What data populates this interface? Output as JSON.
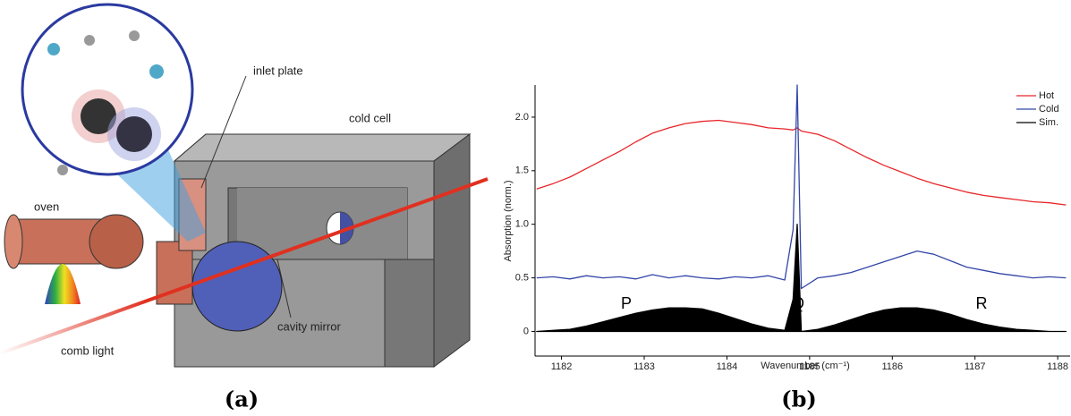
{
  "panel_a": {
    "labels": [
      "inlet plate",
      "cold cell",
      "oven",
      "cavity mirror",
      "comb light"
    ],
    "caption": "(a)"
  },
  "chart_data": {
    "type": "line",
    "caption": "(b)",
    "x_label": "Wavenumber (cm⁻¹)",
    "y_label": "Absorption (norm.)",
    "x": [
      1181.7,
      1181.9,
      1182.1,
      1182.3,
      1182.5,
      1182.7,
      1182.9,
      1183.1,
      1183.3,
      1183.5,
      1183.7,
      1183.9,
      1184.1,
      1184.3,
      1184.5,
      1184.7,
      1184.8,
      1184.85,
      1184.9,
      1185.1,
      1185.3,
      1185.5,
      1185.7,
      1185.9,
      1186.1,
      1186.3,
      1186.5,
      1186.7,
      1186.9,
      1187.1,
      1187.3,
      1187.5,
      1187.7,
      1187.9,
      1188.1
    ],
    "series": [
      {
        "name": "Hot",
        "color": "#e8262a",
        "values": [
          1.33,
          1.38,
          1.44,
          1.52,
          1.6,
          1.68,
          1.77,
          1.85,
          1.9,
          1.94,
          1.96,
          1.97,
          1.95,
          1.93,
          1.9,
          1.89,
          1.88,
          1.9,
          1.87,
          1.84,
          1.78,
          1.7,
          1.62,
          1.55,
          1.49,
          1.43,
          1.38,
          1.34,
          1.3,
          1.27,
          1.25,
          1.23,
          1.21,
          1.2,
          1.18
        ]
      },
      {
        "name": "Cold",
        "color": "#3346a8",
        "values": [
          0.5,
          0.51,
          0.49,
          0.52,
          0.5,
          0.51,
          0.49,
          0.53,
          0.5,
          0.52,
          0.5,
          0.49,
          0.51,
          0.5,
          0.52,
          0.48,
          0.95,
          2.3,
          0.4,
          0.5,
          0.52,
          0.55,
          0.6,
          0.65,
          0.7,
          0.75,
          0.72,
          0.66,
          0.6,
          0.57,
          0.54,
          0.52,
          0.5,
          0.51,
          0.5
        ]
      },
      {
        "name": "Sim.",
        "color": "#000000",
        "fill": true,
        "values": [
          0,
          0.01,
          0.02,
          0.05,
          0.09,
          0.13,
          0.17,
          0.2,
          0.22,
          0.22,
          0.21,
          0.17,
          0.12,
          0.07,
          0.03,
          0.01,
          0.3,
          1.0,
          0,
          0.02,
          0.06,
          0.11,
          0.16,
          0.2,
          0.22,
          0.22,
          0.2,
          0.16,
          0.11,
          0.07,
          0.04,
          0.02,
          0.01,
          0,
          0
        ]
      }
    ],
    "annotations": [
      "P",
      "Q",
      "R"
    ],
    "xlim": [
      1181.68,
      1188.15
    ],
    "ylim": [
      -0.23,
      2.3
    ],
    "xticks": [
      1182,
      1183,
      1184,
      1185,
      1186,
      1187,
      1188
    ],
    "yticks": [
      0,
      0.5,
      {
        "value": 1,
        "label": "1.0"
      },
      1.5,
      {
        "value": 2,
        "label": "2.0"
      }
    ],
    "legend": "top-right"
  }
}
